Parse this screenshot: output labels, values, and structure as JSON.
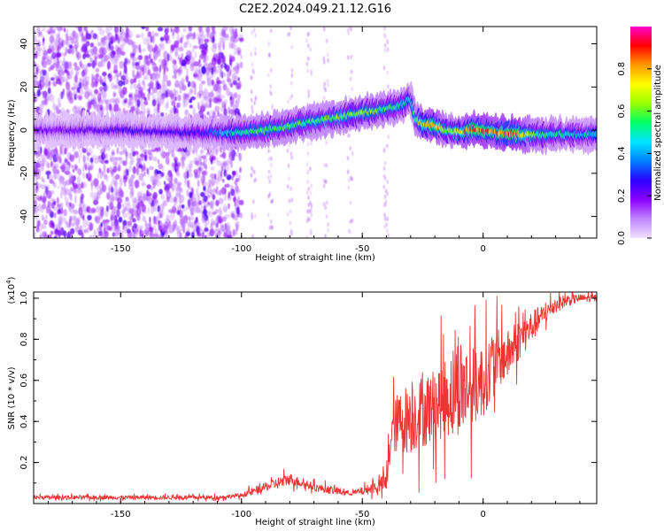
{
  "figure": {
    "title": "C2E2.2024.049.21.12.G16"
  },
  "chart_data": [
    {
      "type": "heatmap",
      "title": "C2E2.2024.049.21.12.G16",
      "xlabel": "Height of straight line (km)",
      "ylabel": "Frequency (Hz)",
      "xlim": [
        -186,
        47
      ],
      "ylim": [
        -50,
        48
      ],
      "x_ticks": [
        -150,
        -100,
        -50,
        0
      ],
      "x_tick_labels": [
        "-150",
        "-100",
        "-50",
        "0"
      ],
      "y_ticks": [
        -40,
        -20,
        0,
        20,
        40
      ],
      "y_tick_labels": [
        "-40",
        "-20",
        "0",
        "20",
        "40"
      ],
      "colorbar": {
        "label": "Normalized spectral amplitude",
        "range": [
          0,
          1
        ],
        "ticks": [
          0.0,
          0.2,
          0.4,
          0.6,
          0.8
        ],
        "tick_labels": [
          "0.0",
          "0.2",
          "0.4",
          "0.6",
          "0.8"
        ],
        "colors": [
          "#f3e0ff",
          "#c084fc",
          "#8b00ff",
          "#2a00ff",
          "#0080ff",
          "#00e5ff",
          "#00ff66",
          "#99ff00",
          "#ffff00",
          "#ff9900",
          "#ff0000",
          "#ff00cc"
        ]
      },
      "ridge": {
        "x": [
          -186,
          -170,
          -150,
          -130,
          -115,
          -105,
          -100,
          -90,
          -80,
          -70,
          -60,
          -50,
          -40,
          -33,
          -30,
          -28,
          -25,
          -20,
          -15,
          -10,
          -5,
          0,
          5,
          10,
          15,
          20,
          30,
          40,
          47
        ],
        "y": [
          0,
          0,
          0,
          -1,
          -1,
          -1,
          -1,
          0,
          2,
          4,
          6,
          8,
          10,
          12,
          15,
          5,
          3,
          2,
          0,
          -1,
          0,
          0,
          -1,
          -1,
          -2,
          -2,
          -2,
          -2,
          -2
        ],
        "amplitude": [
          0.2,
          0.2,
          0.25,
          0.25,
          0.3,
          0.45,
          0.5,
          0.55,
          0.55,
          0.55,
          0.6,
          0.6,
          0.55,
          0.5,
          0.4,
          0.6,
          0.75,
          0.85,
          0.6,
          0.7,
          0.85,
          0.9,
          0.8,
          0.9,
          0.9,
          0.6,
          0.5,
          0.45,
          0.45
        ]
      },
      "noise_region_x": [
        -186,
        -100
      ]
    },
    {
      "type": "line",
      "title": "",
      "xlabel": "Height of straight line (km)",
      "ylabel": "SNR (10 * v/v)",
      "y_scale_label": "(x10",
      "y_scale_exponent": "4",
      "y_scale_close": ")",
      "xlim": [
        -186,
        47
      ],
      "ylim": [
        0,
        1.03
      ],
      "x_ticks": [
        -150,
        -100,
        -50,
        0
      ],
      "x_tick_labels": [
        "-150",
        "-100",
        "-50",
        "0"
      ],
      "y_ticks": [
        0.2,
        0.4,
        0.6,
        0.8,
        1.0
      ],
      "y_tick_labels": [
        "0.2",
        "0.4",
        "0.6",
        "0.8",
        "1.0"
      ],
      "series": [
        {
          "color": "#ee3333",
          "x": [
            -186,
            -170,
            -150,
            -130,
            -110,
            -100,
            -95,
            -90,
            -85,
            -80,
            -75,
            -70,
            -65,
            -60,
            -55,
            -50,
            -45,
            -40,
            -38,
            -35,
            -30,
            -25,
            -20,
            -15,
            -10,
            -5,
            0,
            5,
            10,
            15,
            20,
            25,
            30,
            35,
            40,
            47
          ],
          "y": [
            0.03,
            0.03,
            0.03,
            0.03,
            0.03,
            0.04,
            0.06,
            0.08,
            0.1,
            0.12,
            0.1,
            0.08,
            0.07,
            0.06,
            0.05,
            0.06,
            0.08,
            0.1,
            0.35,
            0.4,
            0.42,
            0.45,
            0.48,
            0.52,
            0.58,
            0.56,
            0.6,
            0.7,
            0.72,
            0.8,
            0.86,
            0.92,
            0.97,
            0.99,
            1.0,
            1.0
          ],
          "spread": [
            0.01,
            0.01,
            0.01,
            0.01,
            0.01,
            0.01,
            0.02,
            0.02,
            0.03,
            0.03,
            0.02,
            0.02,
            0.02,
            0.02,
            0.01,
            0.02,
            0.03,
            0.05,
            0.12,
            0.15,
            0.18,
            0.18,
            0.18,
            0.2,
            0.25,
            0.2,
            0.18,
            0.15,
            0.12,
            0.1,
            0.08,
            0.05,
            0.04,
            0.03,
            0.02,
            0.02
          ]
        }
      ]
    }
  ]
}
